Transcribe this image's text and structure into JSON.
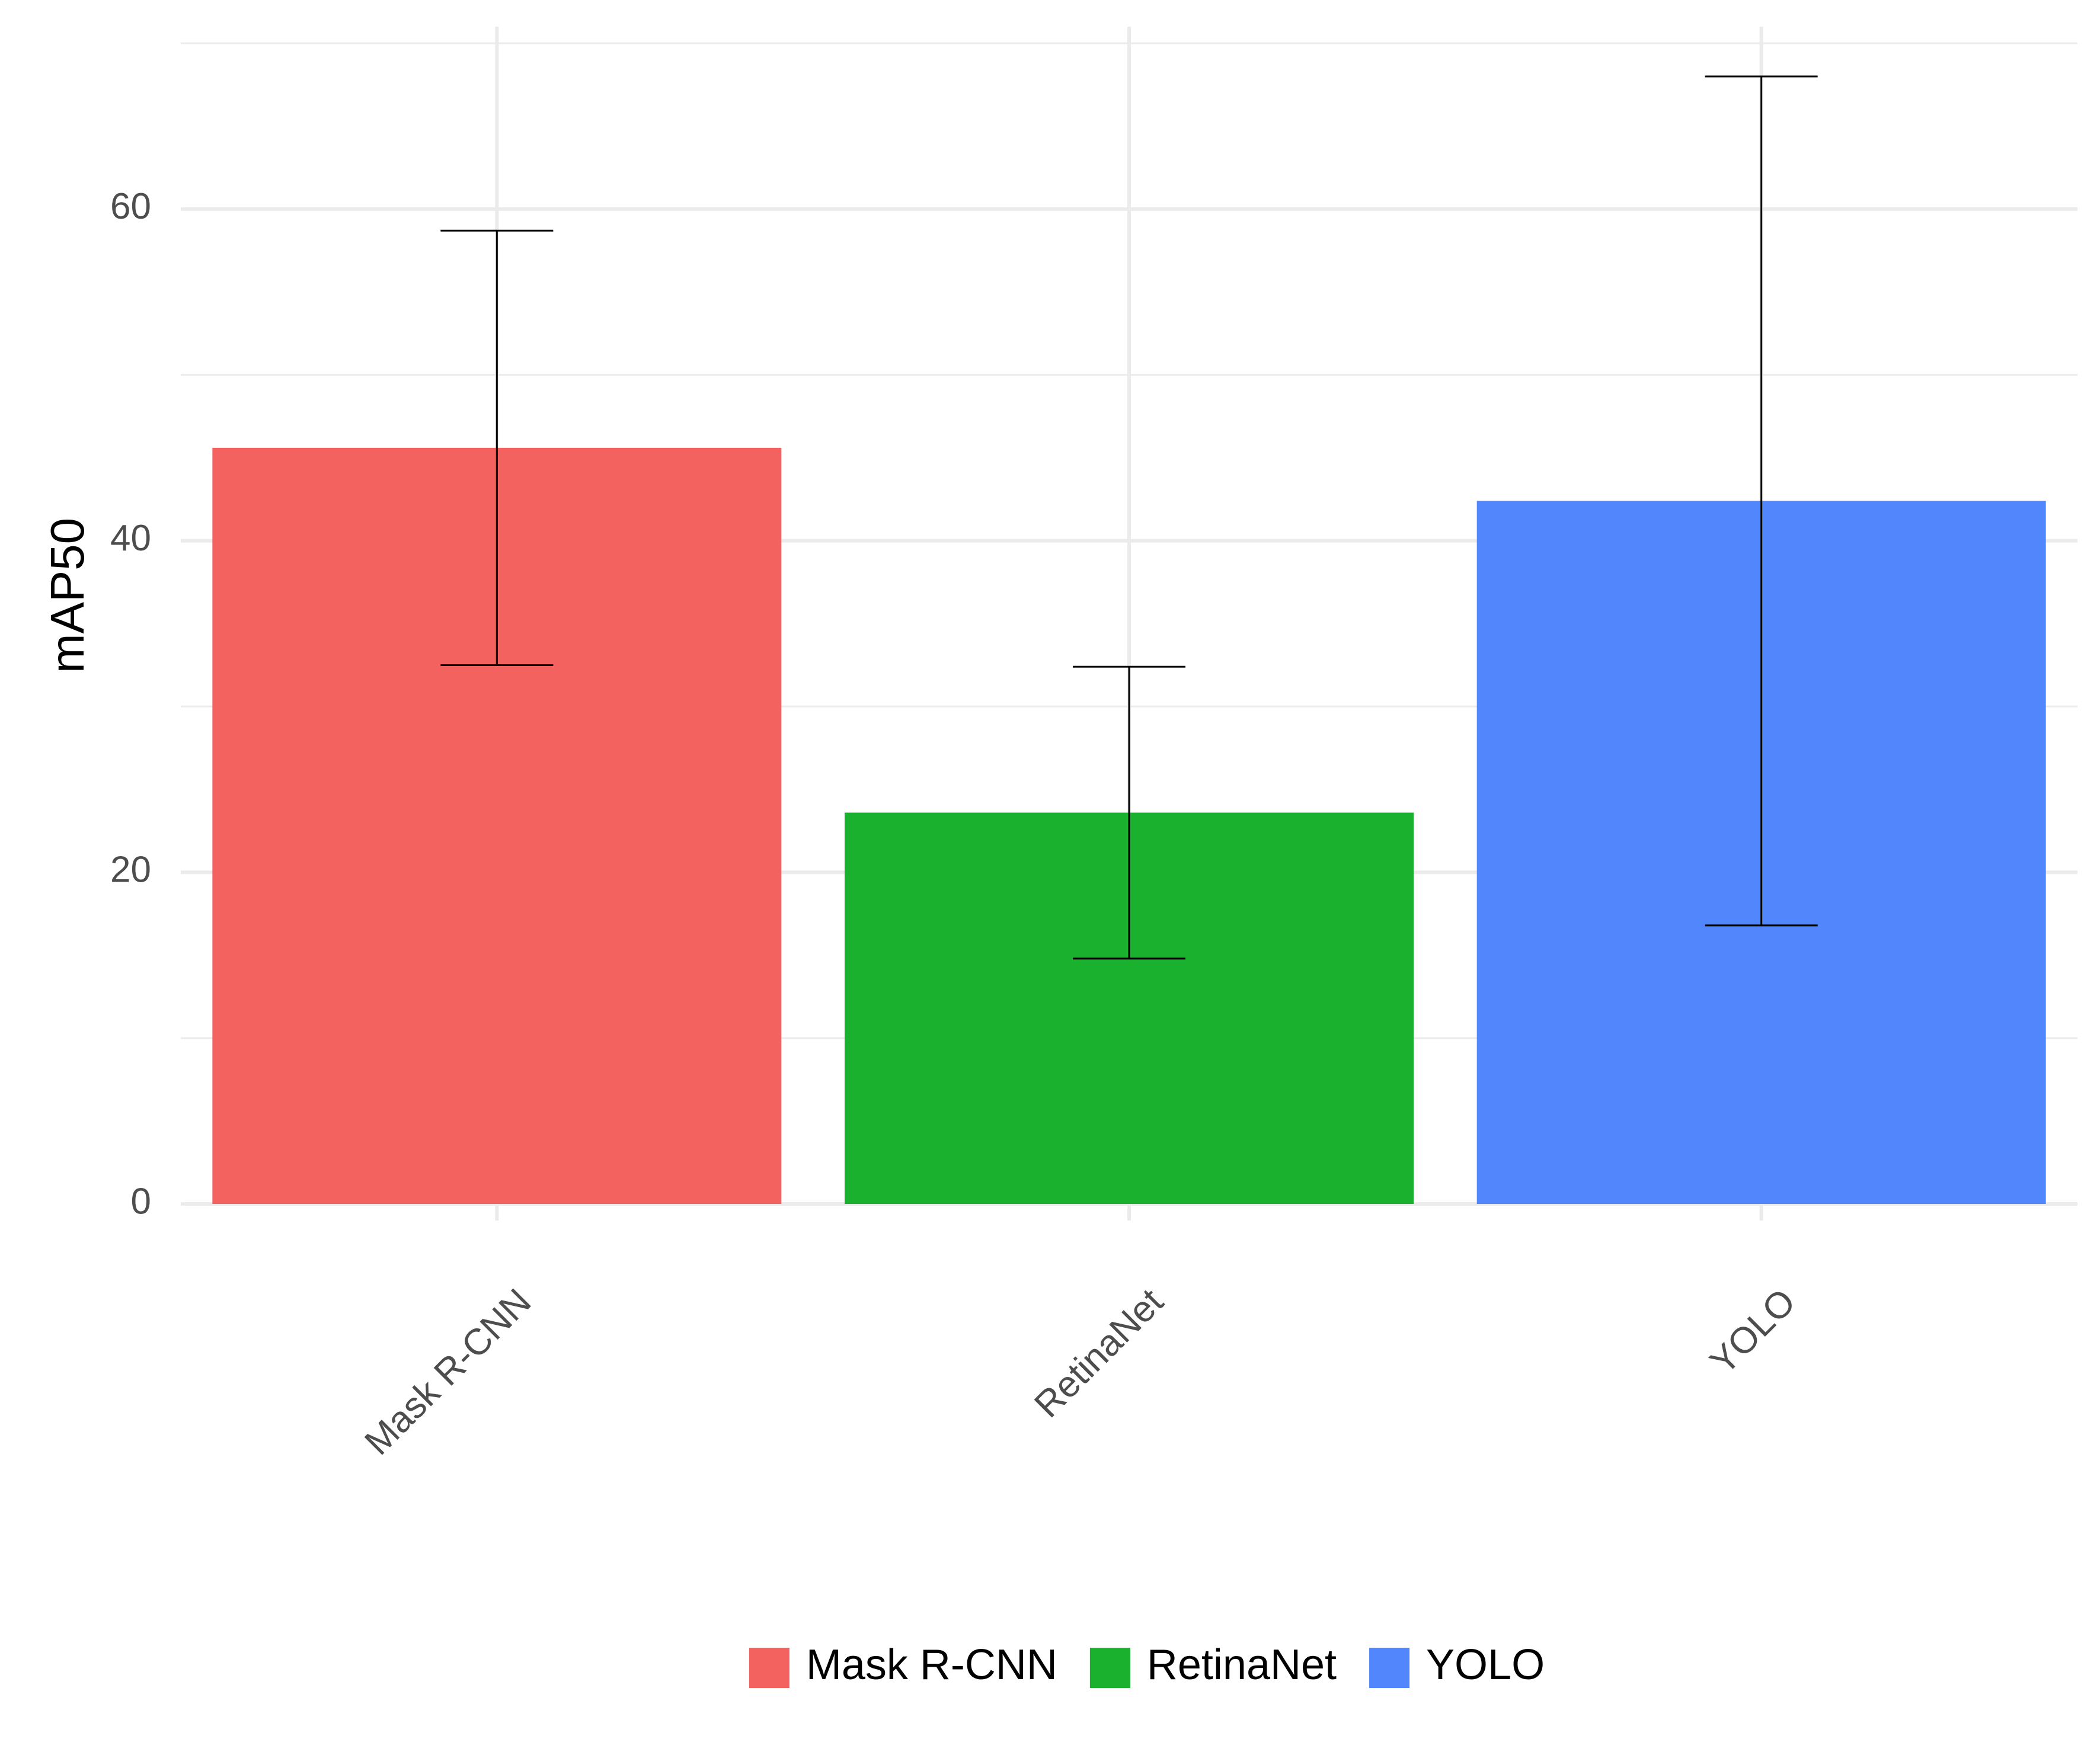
{
  "chart_data": {
    "type": "bar",
    "title": "",
    "xlabel": "",
    "ylabel": "mAP50",
    "categories": [
      "Mask R-CNN",
      "RetinaNet",
      "YOLO"
    ],
    "values": [
      45.6,
      23.6,
      42.4
    ],
    "error_low": [
      32.5,
      14.8,
      16.8
    ],
    "error_high": [
      58.7,
      32.4,
      68.0
    ],
    "colors": [
      "#F3625E",
      "#1AB12F",
      "#5186FD"
    ],
    "ylim": [
      -1,
      71
    ],
    "y_ticks": [
      0,
      20,
      40,
      60
    ],
    "y_tick_labels": [
      "0",
      "20",
      "40",
      "60"
    ],
    "grid": true,
    "legend": {
      "position": "bottom",
      "entries": [
        "Mask R-CNN",
        "RetinaNet",
        "YOLO"
      ]
    },
    "x_tick_label_rotation": "45 degrees"
  }
}
